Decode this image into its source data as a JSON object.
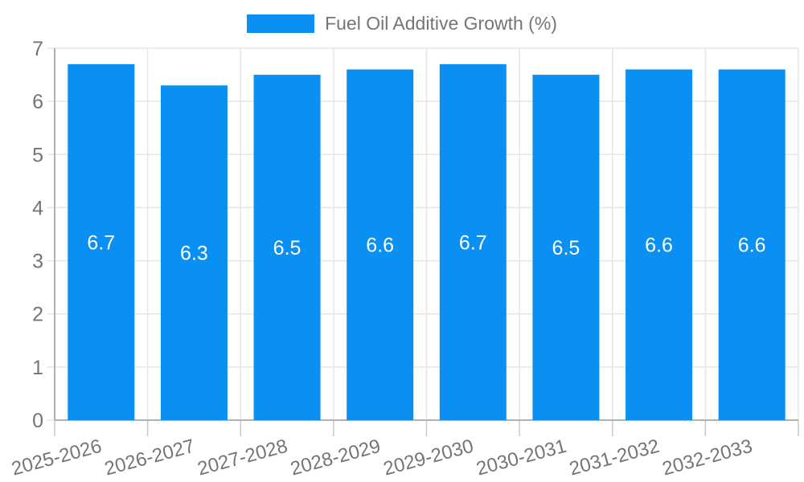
{
  "legend": {
    "label": "Fuel Oil Additive Growth (%)"
  },
  "colors": {
    "bar": "#0a90f2",
    "label_text": "#757575",
    "grid": "#e6e6e6",
    "axis": "#b0b0b0",
    "tick": "#c9c9c9",
    "bar_label": "#ffffff",
    "background": "#ffffff"
  },
  "chart_data": {
    "type": "bar",
    "title": "",
    "xlabel": "",
    "ylabel": "",
    "series_name": "Fuel Oil Additive Growth (%)",
    "categories": [
      "2025-2026",
      "2026-2027",
      "2027-2028",
      "2028-2029",
      "2029-2030",
      "2030-2031",
      "2031-2032",
      "2032-2033"
    ],
    "values": [
      6.7,
      6.3,
      6.5,
      6.6,
      6.7,
      6.5,
      6.6,
      6.6
    ],
    "value_labels": [
      "6.7",
      "6.3",
      "6.5",
      "6.6",
      "6.7",
      "6.5",
      "6.6",
      "6.6"
    ],
    "ylim": [
      0,
      7
    ],
    "yticks": [
      0,
      1,
      2,
      3,
      4,
      5,
      6,
      7
    ],
    "grid": true,
    "legend_position": "top-center",
    "x_tick_rotation_deg": -15,
    "value_label_position": "inside-center"
  }
}
